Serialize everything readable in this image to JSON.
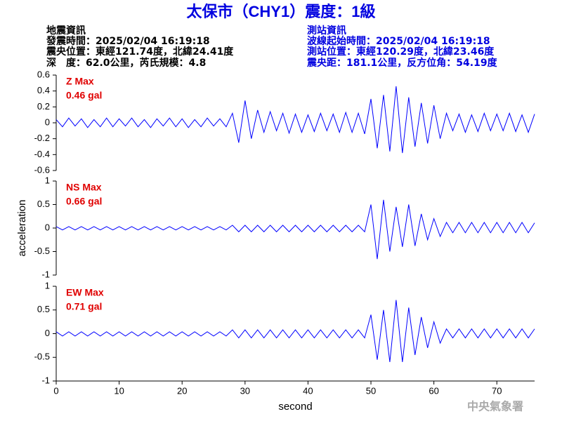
{
  "header": {
    "title": "太保市（CHY1）震度：1級",
    "left": [
      "地震資訊",
      "發震時間：2025/02/04 16:19:18",
      "震央位置：東經121.74度，北緯24.41度",
      "深　度：62.0公里，芮氏規模：4.8"
    ],
    "right": [
      "測站資訊",
      "波線起始時間：2025/02/04 16:19:18",
      "測站位置：東經120.29度，北緯23.46度",
      "震央距：181.1公里，反方位角：54.19度"
    ]
  },
  "watermark": "中央氣象署",
  "chart_data": [
    {
      "type": "line",
      "annotation": [
        "Z Max",
        "0.46 gal"
      ],
      "annotation_color": "#e00000",
      "x": [
        0,
        1,
        2,
        3,
        4,
        5,
        6,
        7,
        8,
        9,
        10,
        11,
        12,
        13,
        14,
        15,
        16,
        17,
        18,
        19,
        20,
        21,
        22,
        23,
        24,
        25,
        26,
        27,
        28,
        29,
        30,
        31,
        32,
        33,
        34,
        35,
        36,
        37,
        38,
        39,
        40,
        41,
        42,
        43,
        44,
        45,
        46,
        47,
        48,
        49,
        50,
        51,
        52,
        53,
        54,
        55,
        56,
        57,
        58,
        59,
        60,
        61,
        62,
        63,
        64,
        65,
        66,
        67,
        68,
        69,
        70,
        71,
        72,
        73,
        74,
        75,
        76
      ],
      "series": [
        {
          "color": "#0000ff",
          "values": [
            0.04,
            -0.05,
            0.06,
            -0.04,
            0.05,
            -0.06,
            0.04,
            -0.05,
            0.06,
            -0.05,
            0.05,
            -0.04,
            0.06,
            -0.05,
            0.04,
            -0.06,
            0.05,
            -0.04,
            0.06,
            -0.05,
            0.05,
            -0.06,
            0.04,
            -0.05,
            0.06,
            -0.04,
            0.05,
            -0.05,
            0.12,
            -0.25,
            0.28,
            -0.2,
            0.16,
            -0.12,
            0.14,
            -0.1,
            0.12,
            -0.13,
            0.11,
            -0.12,
            0.1,
            -0.11,
            0.12,
            -0.1,
            0.11,
            -0.12,
            0.13,
            -0.12,
            0.12,
            -0.14,
            0.3,
            -0.32,
            0.35,
            -0.36,
            0.46,
            -0.38,
            0.32,
            -0.3,
            0.25,
            -0.26,
            0.22,
            -0.2,
            0.12,
            -0.1,
            0.11,
            -0.12,
            0.1,
            -0.11,
            0.12,
            -0.1,
            0.11,
            -0.1,
            0.12,
            -0.11,
            0.1,
            -0.12,
            0.11
          ]
        }
      ],
      "xlim": [
        0,
        76
      ],
      "ylim": [
        -0.6,
        0.6
      ],
      "yticks": [
        0.6,
        0.4,
        0.2,
        0,
        -0.2,
        -0.4,
        -0.6
      ]
    },
    {
      "type": "line",
      "annotation": [
        "NS Max",
        "0.66 gal"
      ],
      "annotation_color": "#e00000",
      "ylabel": "acceleration",
      "x": [
        0,
        1,
        2,
        3,
        4,
        5,
        6,
        7,
        8,
        9,
        10,
        11,
        12,
        13,
        14,
        15,
        16,
        17,
        18,
        19,
        20,
        21,
        22,
        23,
        24,
        25,
        26,
        27,
        28,
        29,
        30,
        31,
        32,
        33,
        34,
        35,
        36,
        37,
        38,
        39,
        40,
        41,
        42,
        43,
        44,
        45,
        46,
        47,
        48,
        49,
        50,
        51,
        52,
        53,
        54,
        55,
        56,
        57,
        58,
        59,
        60,
        61,
        62,
        63,
        64,
        65,
        66,
        67,
        68,
        69,
        70,
        71,
        72,
        73,
        74,
        75,
        76
      ],
      "series": [
        {
          "color": "#0000ff",
          "values": [
            0.03,
            -0.04,
            0.03,
            -0.04,
            0.03,
            -0.04,
            0.03,
            -0.04,
            0.03,
            -0.04,
            0.03,
            -0.04,
            0.03,
            -0.04,
            0.03,
            -0.04,
            0.03,
            -0.04,
            0.03,
            -0.04,
            0.03,
            -0.04,
            0.03,
            -0.04,
            0.03,
            -0.04,
            0.03,
            -0.04,
            0.06,
            -0.08,
            0.06,
            -0.08,
            0.06,
            -0.08,
            0.06,
            -0.08,
            0.06,
            -0.08,
            0.06,
            -0.08,
            0.06,
            -0.08,
            0.06,
            -0.08,
            0.06,
            -0.08,
            0.06,
            -0.08,
            0.06,
            -0.08,
            0.5,
            -0.66,
            0.6,
            -0.5,
            0.45,
            -0.4,
            0.5,
            -0.38,
            0.3,
            -0.25,
            0.2,
            -0.18,
            0.12,
            -0.1,
            0.12,
            -0.1,
            0.12,
            -0.1,
            0.12,
            -0.1,
            0.12,
            -0.1,
            0.12,
            -0.1,
            0.12,
            -0.1,
            0.11
          ]
        }
      ],
      "xlim": [
        0,
        76
      ],
      "ylim": [
        -1,
        1
      ],
      "yticks": [
        1,
        0.5,
        0,
        -0.5,
        -1
      ]
    },
    {
      "type": "line",
      "annotation": [
        "EW Max",
        "0.71 gal"
      ],
      "annotation_color": "#e00000",
      "xlabel": "second",
      "x": [
        0,
        1,
        2,
        3,
        4,
        5,
        6,
        7,
        8,
        9,
        10,
        11,
        12,
        13,
        14,
        15,
        16,
        17,
        18,
        19,
        20,
        21,
        22,
        23,
        24,
        25,
        26,
        27,
        28,
        29,
        30,
        31,
        32,
        33,
        34,
        35,
        36,
        37,
        38,
        39,
        40,
        41,
        42,
        43,
        44,
        45,
        46,
        47,
        48,
        49,
        50,
        51,
        52,
        53,
        54,
        55,
        56,
        57,
        58,
        59,
        60,
        61,
        62,
        63,
        64,
        65,
        66,
        67,
        68,
        69,
        70,
        71,
        72,
        73,
        74,
        75,
        76
      ],
      "series": [
        {
          "color": "#0000ff",
          "values": [
            0.04,
            -0.05,
            0.04,
            -0.05,
            0.04,
            -0.05,
            0.04,
            -0.05,
            0.04,
            -0.05,
            0.04,
            -0.05,
            0.04,
            -0.05,
            0.04,
            -0.05,
            0.04,
            -0.05,
            0.04,
            -0.05,
            0.04,
            -0.05,
            0.04,
            -0.05,
            0.04,
            -0.05,
            0.04,
            -0.05,
            0.08,
            -0.09,
            0.08,
            -0.09,
            0.08,
            -0.09,
            0.08,
            -0.09,
            0.08,
            -0.09,
            0.08,
            -0.09,
            0.08,
            -0.09,
            0.08,
            -0.09,
            0.08,
            -0.09,
            0.08,
            -0.09,
            0.08,
            -0.09,
            0.4,
            -0.55,
            0.5,
            -0.6,
            0.71,
            -0.6,
            0.55,
            -0.45,
            0.35,
            -0.3,
            0.25,
            -0.2,
            0.1,
            -0.09,
            0.1,
            -0.09,
            0.1,
            -0.09,
            0.1,
            -0.09,
            0.1,
            -0.09,
            0.1,
            -0.09,
            0.1,
            -0.09,
            0.1
          ]
        }
      ],
      "xlim": [
        0,
        76
      ],
      "ylim": [
        -1,
        1
      ],
      "yticks": [
        1,
        0.5,
        0,
        -0.5,
        -1
      ],
      "xticks": [
        0,
        10,
        20,
        30,
        40,
        50,
        60,
        70
      ]
    }
  ]
}
